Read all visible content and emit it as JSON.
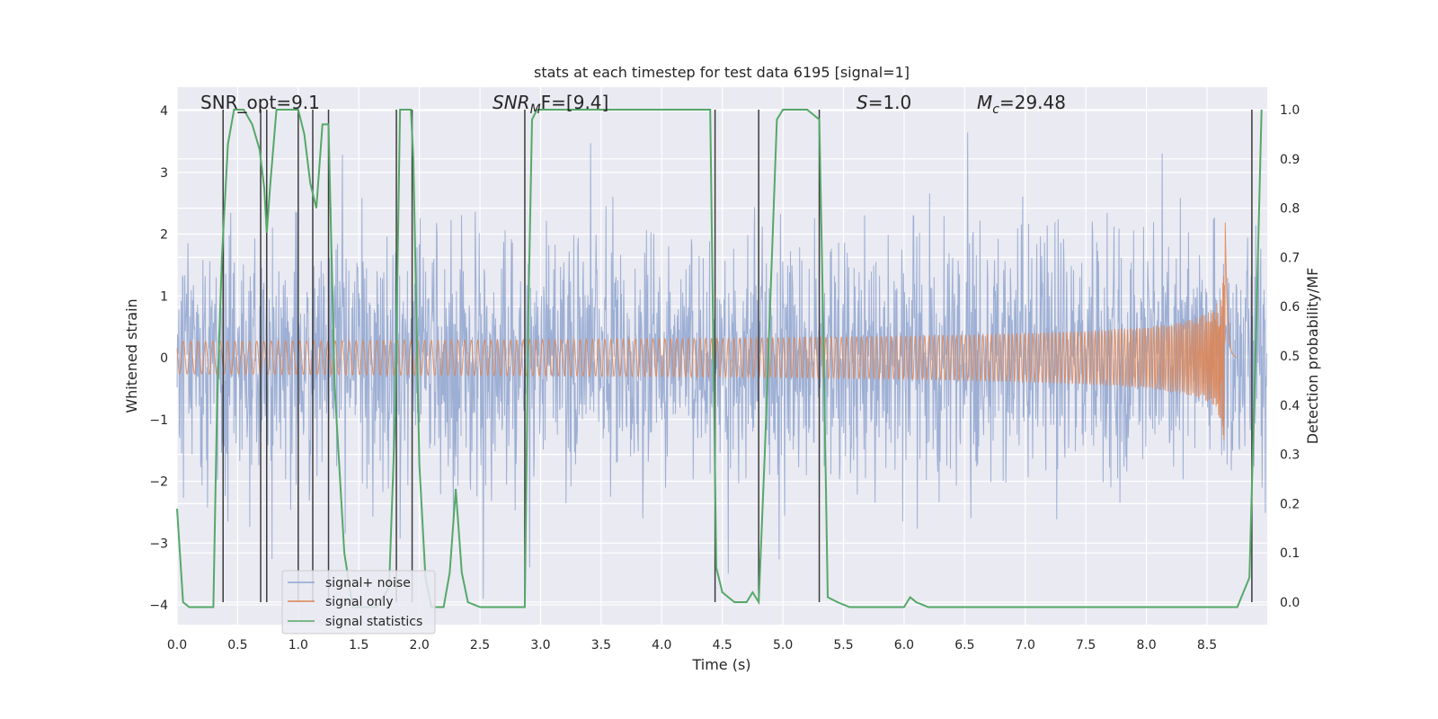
{
  "chart_data": {
    "type": "line",
    "title": "stats at each timestep for test data 6195 [signal=1]",
    "xlabel": "Time (s)",
    "ylabel": "Whitened strain",
    "ylabel_right": "Detection probability/MF",
    "xlim": [
      0.0,
      9.0
    ],
    "ylim": [
      -4.3,
      4.4
    ],
    "ylim_right": [
      -0.05,
      1.04
    ],
    "grid": true,
    "legend_placement": "lower-left",
    "xticks": [
      "0.0",
      "0.5",
      "1.0",
      "1.5",
      "2.0",
      "2.5",
      "3.0",
      "3.5",
      "4.0",
      "4.5",
      "5.0",
      "5.5",
      "6.0",
      "6.5",
      "7.0",
      "7.5",
      "8.0",
      "8.5"
    ],
    "yticks_left": [
      "−4",
      "−3",
      "−2",
      "−1",
      "0",
      "1",
      "2",
      "3",
      "4"
    ],
    "yticks_right": [
      "0.0",
      "0.1",
      "0.2",
      "0.3",
      "0.4",
      "0.5",
      "0.6",
      "0.7",
      "0.8",
      "0.9",
      "1.0"
    ],
    "annotations": {
      "snr_opt": "SNR_opt=9.1",
      "snr_mf_main": "SNR",
      "snr_mf_sub": "M",
      "snr_mf_rest": "F=[9.4]",
      "s_italic": "S",
      "s_rest": "=1.0",
      "mc_main": "M",
      "mc_sub": "c",
      "mc_rest": "=29.48"
    },
    "series": [
      {
        "name": "signal+ noise",
        "color": "#8fa4cf",
        "axis": "left",
        "kind": "noise",
        "amplitude_sd": 1.0
      },
      {
        "name": "signal only",
        "color": "#dd8452",
        "axis": "left",
        "kind": "chirp",
        "t_merger": 8.65,
        "peak_amplitude": 2.3
      },
      {
        "name": "signal statistics",
        "color": "#55a868",
        "axis": "right",
        "x": [
          0.0,
          0.05,
          0.1,
          0.18,
          0.25,
          0.3,
          0.33,
          0.37,
          0.42,
          0.47,
          0.55,
          0.62,
          0.68,
          0.72,
          0.74,
          0.77,
          0.82,
          0.9,
          1.0,
          1.05,
          1.1,
          1.15,
          1.2,
          1.25,
          1.3,
          1.38,
          1.45,
          1.55,
          1.65,
          1.75,
          1.8,
          1.84,
          1.88,
          1.93,
          1.95,
          2.0,
          2.05,
          2.1,
          2.2,
          2.25,
          2.3,
          2.35,
          2.4,
          2.5,
          2.6,
          2.7,
          2.8,
          2.87,
          2.9,
          2.93,
          2.97,
          3.0,
          3.5,
          4.0,
          4.4,
          4.45,
          4.5,
          4.6,
          4.7,
          4.75,
          4.8,
          4.85,
          4.95,
          5.0,
          5.1,
          5.2,
          5.3,
          5.33,
          5.37,
          5.45,
          5.55,
          5.7,
          6.0,
          6.05,
          6.1,
          6.2,
          7.0,
          8.0,
          8.5,
          8.75,
          8.85,
          8.9,
          8.95
        ],
        "values": [
          0.19,
          0.0,
          -0.01,
          -0.01,
          -0.01,
          -0.01,
          0.4,
          0.7,
          0.93,
          1.0,
          1.0,
          0.97,
          0.92,
          0.84,
          0.75,
          0.85,
          1.0,
          1.0,
          1.0,
          0.95,
          0.85,
          0.8,
          0.97,
          0.97,
          0.44,
          0.1,
          -0.01,
          -0.01,
          -0.01,
          0.03,
          0.38,
          1.0,
          1.0,
          1.0,
          0.9,
          0.28,
          0.05,
          -0.01,
          -0.01,
          0.06,
          0.23,
          0.06,
          0.0,
          -0.01,
          -0.01,
          -0.01,
          -0.01,
          -0.01,
          0.6,
          0.98,
          1.0,
          1.0,
          1.0,
          1.0,
          1.0,
          0.07,
          0.02,
          0.0,
          0.0,
          0.02,
          0.0,
          0.3,
          0.98,
          1.0,
          1.0,
          1.0,
          0.98,
          0.6,
          0.01,
          0.0,
          -0.01,
          -0.01,
          -0.01,
          0.01,
          0.0,
          -0.01,
          -0.01,
          -0.01,
          -0.01,
          -0.01,
          0.05,
          0.5,
          1.0
        ]
      }
    ],
    "vlines": [
      0.38,
      0.69,
      0.74,
      1.0,
      1.12,
      1.25,
      1.81,
      1.94,
      2.87,
      4.44,
      4.8,
      5.3,
      8.87
    ],
    "vline_color": "#3c3c3c"
  }
}
